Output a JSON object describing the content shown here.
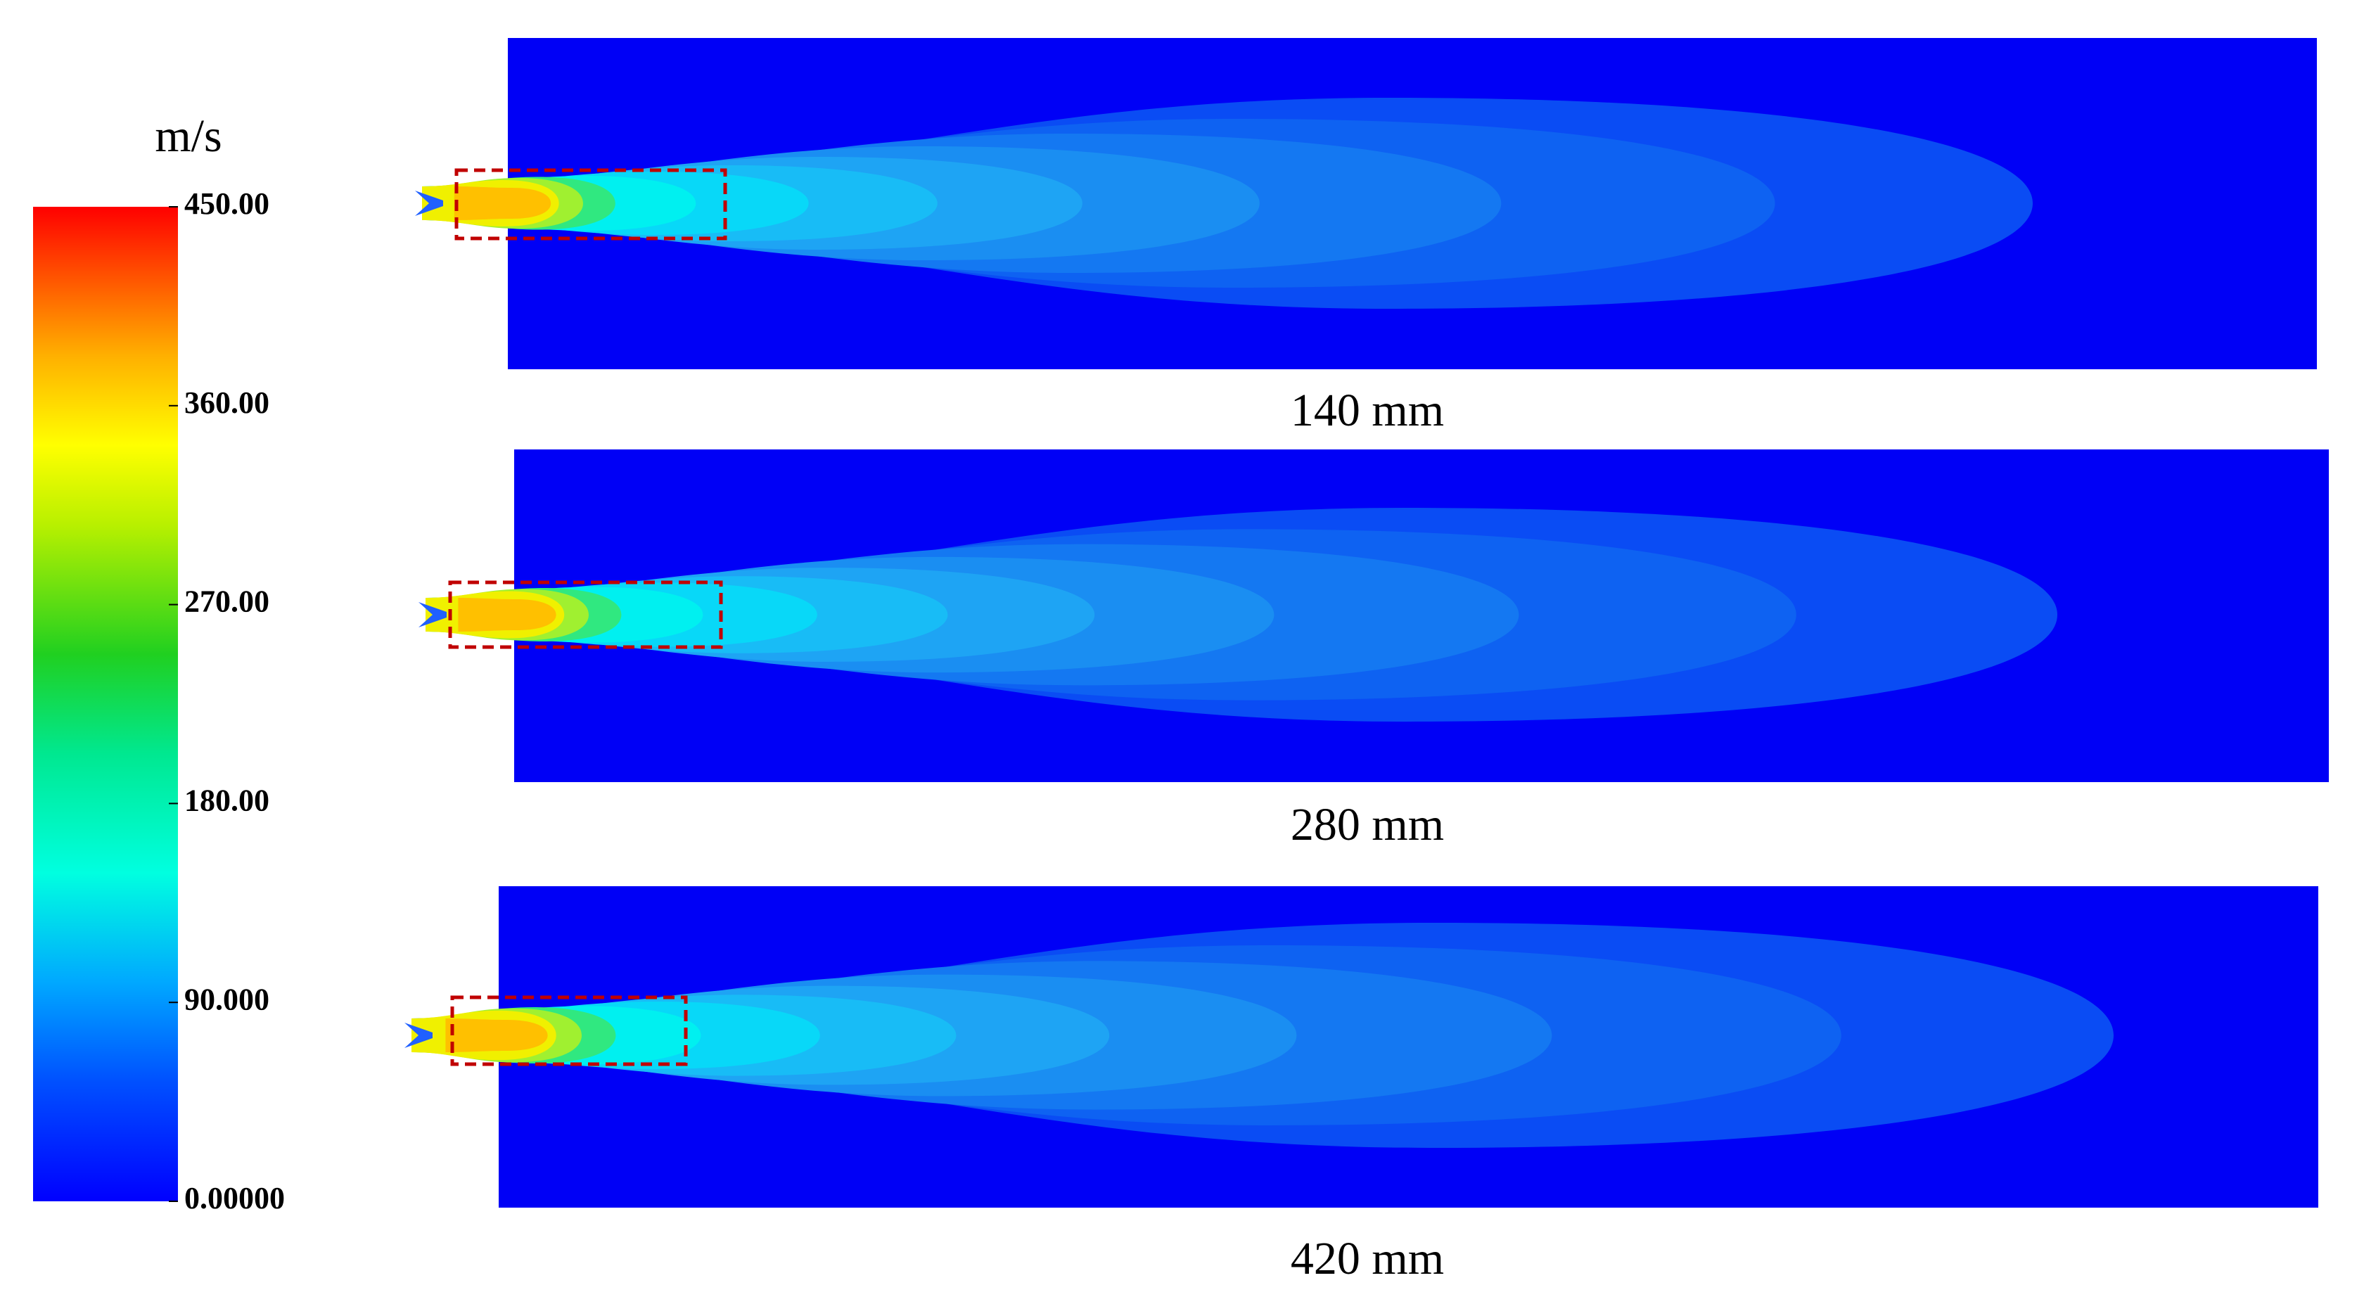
{
  "colorbar": {
    "unit": "m/s",
    "ticks": [
      {
        "value": 450,
        "label": "450.00"
      },
      {
        "value": 360,
        "label": "360.00"
      },
      {
        "value": 270,
        "label": "270.00"
      },
      {
        "value": 180,
        "label": "180.00"
      },
      {
        "value": 90,
        "label": "90.000"
      },
      {
        "value": 0,
        "label": "0.00000"
      }
    ]
  },
  "panels": [
    {
      "caption": "140 mm"
    },
    {
      "caption": "280 mm"
    },
    {
      "caption": "420 mm"
    }
  ]
}
